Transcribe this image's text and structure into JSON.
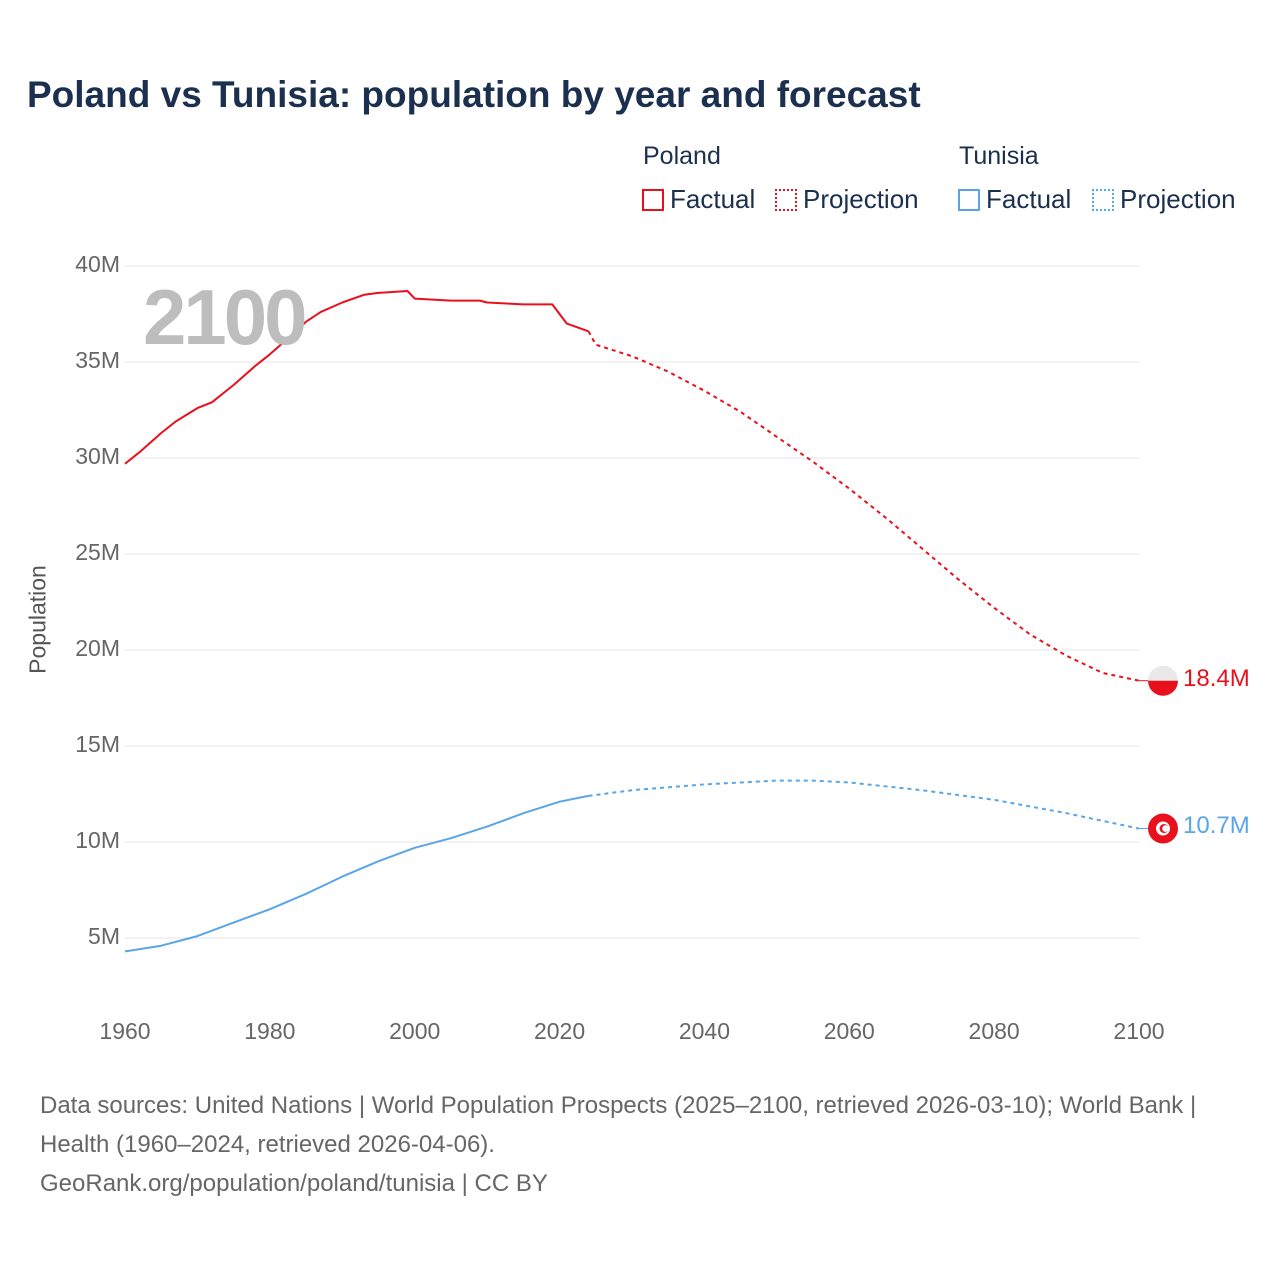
{
  "title": "Poland vs Tunisia: population by year and forecast",
  "legend": {
    "groups": [
      {
        "name": "Poland",
        "factual": "Factual",
        "projection": "Projection",
        "color": "#e8101d"
      },
      {
        "name": "Tunisia",
        "factual": "Factual",
        "projection": "Projection",
        "color": "#5aa5e8"
      }
    ]
  },
  "current_year_label": "2100",
  "end_labels": {
    "poland": "18.4M",
    "tunisia": "10.7M"
  },
  "flag_icons": {
    "poland": "poland-flag-icon",
    "tunisia": "tunisia-flag-icon"
  },
  "source": {
    "line1": "Data sources: United Nations | World Population Prospects (2025–2100, retrieved 2026-03-10); World Bank | Health (1960–2024, retrieved 2026-04-06).",
    "line2": "GeoRank.org/population/poland/tunisia | CC BY"
  },
  "chart_data": {
    "type": "line",
    "title": "Poland vs Tunisia: population by year and forecast",
    "xlabel": "",
    "ylabel": "Population",
    "xlim": [
      1960,
      2100
    ],
    "ylim": [
      0,
      40
    ],
    "unit": "millions",
    "x_ticks": [
      "1960",
      "1980",
      "2000",
      "2020",
      "2040",
      "2060",
      "2080",
      "2100"
    ],
    "x_tick_values": [
      1960,
      1980,
      2000,
      2020,
      2040,
      2060,
      2080,
      2100
    ],
    "y_ticks": [
      "5M",
      "10M",
      "15M",
      "20M",
      "25M",
      "30M",
      "35M",
      "40M"
    ],
    "y_tick_values": [
      5,
      10,
      15,
      20,
      25,
      30,
      35,
      40
    ],
    "grid": true,
    "legend_placement": "top-right",
    "series": [
      {
        "name": "Poland Factual",
        "color": "#e8101d",
        "style": "solid",
        "x": [
          1960,
          1962,
          1965,
          1967,
          1970,
          1972,
          1975,
          1978,
          1980,
          1983,
          1985,
          1987,
          1990,
          1993,
          1995,
          1999,
          2000,
          2005,
          2009,
          2010,
          2015,
          2019,
          2021,
          2024
        ],
        "values": [
          29.7,
          30.3,
          31.3,
          31.9,
          32.6,
          32.9,
          33.8,
          34.8,
          35.4,
          36.4,
          37.1,
          37.6,
          38.1,
          38.5,
          38.6,
          38.7,
          38.3,
          38.2,
          38.2,
          38.1,
          38.0,
          38.0,
          37.0,
          36.6
        ]
      },
      {
        "name": "Poland Projection",
        "color": "#e8101d",
        "style": "dotted",
        "x": [
          2024,
          2025,
          2030,
          2035,
          2040,
          2045,
          2050,
          2055,
          2060,
          2065,
          2070,
          2075,
          2080,
          2085,
          2090,
          2095,
          2100
        ],
        "values": [
          36.6,
          35.9,
          35.3,
          34.5,
          33.5,
          32.4,
          31.1,
          29.8,
          28.4,
          26.9,
          25.3,
          23.7,
          22.2,
          20.8,
          19.7,
          18.8,
          18.4
        ]
      },
      {
        "name": "Tunisia Factual",
        "color": "#5aa5e8",
        "style": "solid",
        "x": [
          1960,
          1965,
          1970,
          1975,
          1980,
          1985,
          1990,
          1995,
          2000,
          2005,
          2010,
          2015,
          2020,
          2024
        ],
        "values": [
          4.3,
          4.6,
          5.1,
          5.8,
          6.5,
          7.3,
          8.2,
          9.0,
          9.7,
          10.2,
          10.8,
          11.5,
          12.1,
          12.4
        ]
      },
      {
        "name": "Tunisia Projection",
        "color": "#5aa5e8",
        "style": "dotted",
        "x": [
          2024,
          2030,
          2040,
          2050,
          2055,
          2060,
          2070,
          2080,
          2090,
          2100
        ],
        "values": [
          12.4,
          12.7,
          13.0,
          13.2,
          13.2,
          13.1,
          12.7,
          12.2,
          11.5,
          10.7
        ]
      }
    ]
  }
}
